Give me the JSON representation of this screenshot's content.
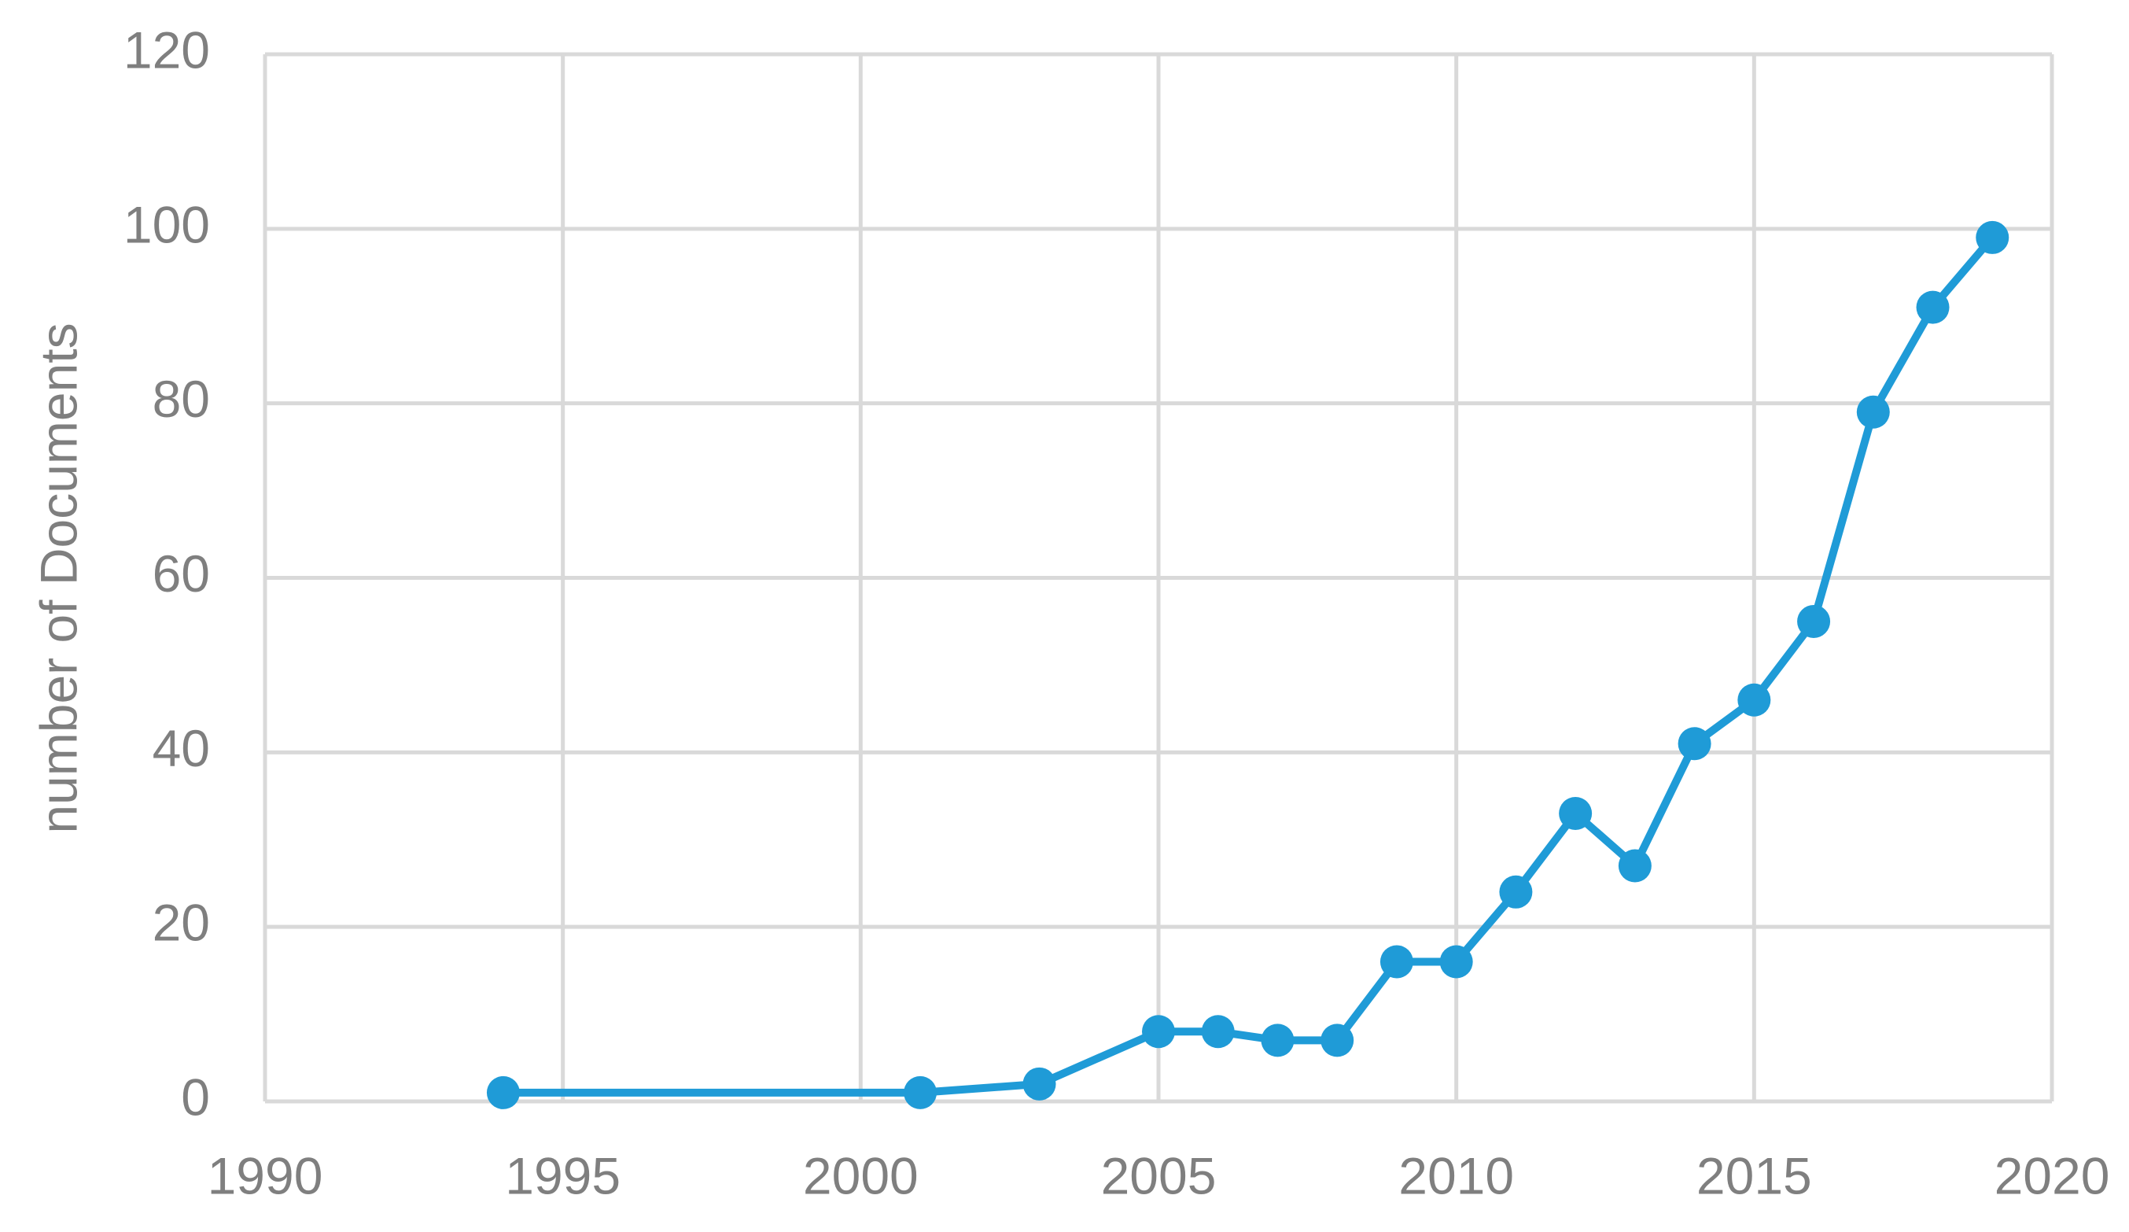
{
  "chart_data": {
    "type": "line",
    "y_label": "number of Documents",
    "x": [
      1994,
      2001,
      2003,
      2005,
      2006,
      2007,
      2008,
      2009,
      2010,
      2011,
      2012,
      2013,
      2014,
      2015,
      2016,
      2017,
      2018,
      2019
    ],
    "values": [
      1,
      1,
      2,
      8,
      8,
      7,
      7,
      16,
      16,
      24,
      33,
      27,
      41,
      46,
      55,
      79,
      91,
      99
    ],
    "color": "#1f9bd7",
    "xlim": [
      1990,
      2020
    ],
    "xticks": [
      1990,
      1995,
      2000,
      2005,
      2010,
      2015,
      2020
    ],
    "ylim": [
      0,
      120
    ],
    "yticks": [
      0,
      20,
      40,
      60,
      80,
      100,
      120
    ],
    "grid": true
  }
}
